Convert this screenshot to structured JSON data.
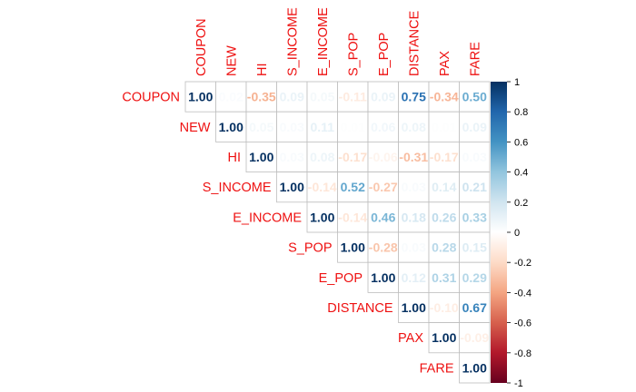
{
  "chart_data": {
    "type": "heatmap",
    "layout": "upper-triangle",
    "variables": [
      "COUPON",
      "NEW",
      "HI",
      "S_INCOME",
      "E_INCOME",
      "S_POP",
      "E_POP",
      "DISTANCE",
      "PAX",
      "FARE"
    ],
    "matrix": [
      [
        1.0,
        0.02,
        -0.35,
        0.09,
        0.05,
        -0.11,
        0.09,
        0.75,
        -0.34,
        0.5
      ],
      [
        0.02,
        1.0,
        0.05,
        0.03,
        0.11,
        0.01,
        0.06,
        0.08,
        0.01,
        0.09
      ],
      [
        -0.35,
        0.05,
        1.0,
        0.03,
        0.08,
        -0.17,
        -0.06,
        -0.31,
        -0.17,
        0.03
      ],
      [
        0.09,
        0.03,
        0.03,
        1.0,
        -0.14,
        0.52,
        -0.27,
        0.03,
        0.14,
        0.21
      ],
      [
        0.05,
        0.11,
        0.08,
        -0.14,
        1.0,
        -0.14,
        0.46,
        0.18,
        0.26,
        0.33
      ],
      [
        -0.11,
        0.01,
        -0.17,
        0.52,
        -0.14,
        1.0,
        -0.28,
        0.03,
        0.28,
        0.15
      ],
      [
        0.09,
        0.06,
        -0.06,
        -0.27,
        0.46,
        -0.28,
        1.0,
        0.12,
        0.31,
        0.29
      ],
      [
        0.75,
        0.08,
        -0.31,
        0.03,
        0.18,
        0.03,
        0.12,
        1.0,
        -0.1,
        0.67
      ],
      [
        -0.34,
        0.01,
        -0.17,
        0.14,
        0.26,
        0.28,
        0.31,
        -0.1,
        1.0,
        -0.09
      ],
      [
        0.5,
        0.09,
        0.03,
        0.21,
        0.33,
        0.15,
        0.29,
        0.67,
        -0.09,
        1.0
      ]
    ],
    "value_format": "2 decimals",
    "color_scale": {
      "range": [
        -1,
        1
      ],
      "ticks": [
        "-1",
        "-0.8",
        "-0.6",
        "-0.4",
        "-0.2",
        "0",
        "0.2",
        "0.4",
        "0.6",
        "0.8",
        "1"
      ],
      "colors": [
        "#67001f",
        "#b2182b",
        "#d6604d",
        "#f4a582",
        "#fddbc7",
        "#ffffff",
        "#d1e5f0",
        "#92c5de",
        "#4393c3",
        "#2166ac",
        "#053061"
      ]
    },
    "label_color": "#ee1111",
    "legend_placement": "right",
    "title": "",
    "xlabel": "",
    "ylabel": ""
  }
}
